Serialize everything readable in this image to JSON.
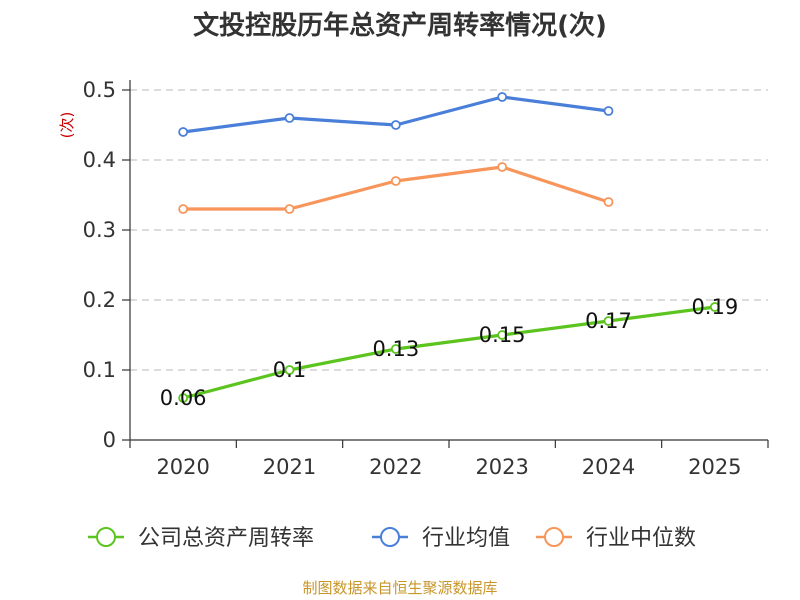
{
  "chart_data": {
    "type": "line",
    "title": "文投控股历年总资产周转率情况(次)",
    "ylabel": "(次)",
    "xlabel": "",
    "categories": [
      "2020",
      "2021",
      "2022",
      "2023",
      "2024",
      "2025"
    ],
    "yticks": [
      "0",
      "0.1",
      "0.2",
      "0.3",
      "0.4",
      "0.5"
    ],
    "ylim": [
      0,
      0.5
    ],
    "grid": true,
    "legend_position": "bottom",
    "series": [
      {
        "name": "公司总资产周转率",
        "color": "#5cc41e",
        "values": [
          0.06,
          0.1,
          0.13,
          0.15,
          0.17,
          0.19
        ],
        "labels": [
          "0.06",
          "0.1",
          "0.13",
          "0.15",
          "0.17",
          "0.19"
        ],
        "show_labels": true
      },
      {
        "name": "行业均值",
        "color": "#4a7fd9",
        "values": [
          0.44,
          0.46,
          0.45,
          0.49,
          0.47,
          null
        ],
        "show_labels": false
      },
      {
        "name": "行业中位数",
        "color": "#f7955b",
        "values": [
          0.33,
          0.33,
          0.37,
          0.39,
          0.34,
          null
        ],
        "show_labels": false
      }
    ],
    "source": "制图数据来自恒生聚源数据库"
  }
}
